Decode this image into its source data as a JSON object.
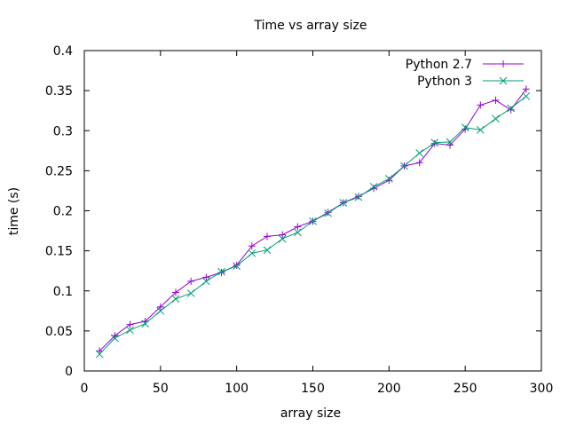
{
  "chart_data": {
    "type": "line",
    "title": "Time vs array size",
    "xlabel": "array size",
    "ylabel": "time (s)",
    "xlim": [
      0,
      300
    ],
    "ylim": [
      0,
      0.4
    ],
    "xticks": [
      0,
      50,
      100,
      150,
      200,
      250,
      300
    ],
    "yticks": [
      0,
      0.05,
      0.1,
      0.15,
      0.2,
      0.25,
      0.3,
      0.35,
      0.4
    ],
    "xtick_labels": [
      "0",
      "50",
      "100",
      "150",
      "200",
      "250",
      "300"
    ],
    "ytick_labels": [
      "0",
      "0.05",
      "0.1",
      "0.15",
      "0.2",
      "0.25",
      "0.3",
      "0.35",
      "0.4"
    ],
    "grid": false,
    "legend_position": "top-right",
    "x": [
      10,
      20,
      30,
      40,
      50,
      60,
      70,
      80,
      90,
      100,
      110,
      120,
      130,
      140,
      150,
      160,
      170,
      180,
      190,
      200,
      210,
      220,
      230,
      240,
      250,
      260,
      270,
      280,
      290
    ],
    "series": [
      {
        "name": "Python 2.7",
        "color": "#9400d3",
        "marker": "plus",
        "values": [
          0.025,
          0.044,
          0.058,
          0.062,
          0.08,
          0.098,
          0.112,
          0.117,
          0.123,
          0.132,
          0.156,
          0.168,
          0.17,
          0.18,
          0.187,
          0.198,
          0.21,
          0.218,
          0.228,
          0.238,
          0.256,
          0.26,
          0.284,
          0.282,
          0.302,
          0.332,
          0.338,
          0.326,
          0.352
        ]
      },
      {
        "name": "Python 3",
        "color": "#009e73",
        "marker": "cross",
        "values": [
          0.021,
          0.041,
          0.051,
          0.059,
          0.075,
          0.09,
          0.097,
          0.112,
          0.124,
          0.131,
          0.147,
          0.151,
          0.165,
          0.173,
          0.187,
          0.197,
          0.21,
          0.217,
          0.23,
          0.24,
          0.256,
          0.272,
          0.285,
          0.286,
          0.304,
          0.301,
          0.315,
          0.328,
          0.343
        ]
      }
    ]
  }
}
